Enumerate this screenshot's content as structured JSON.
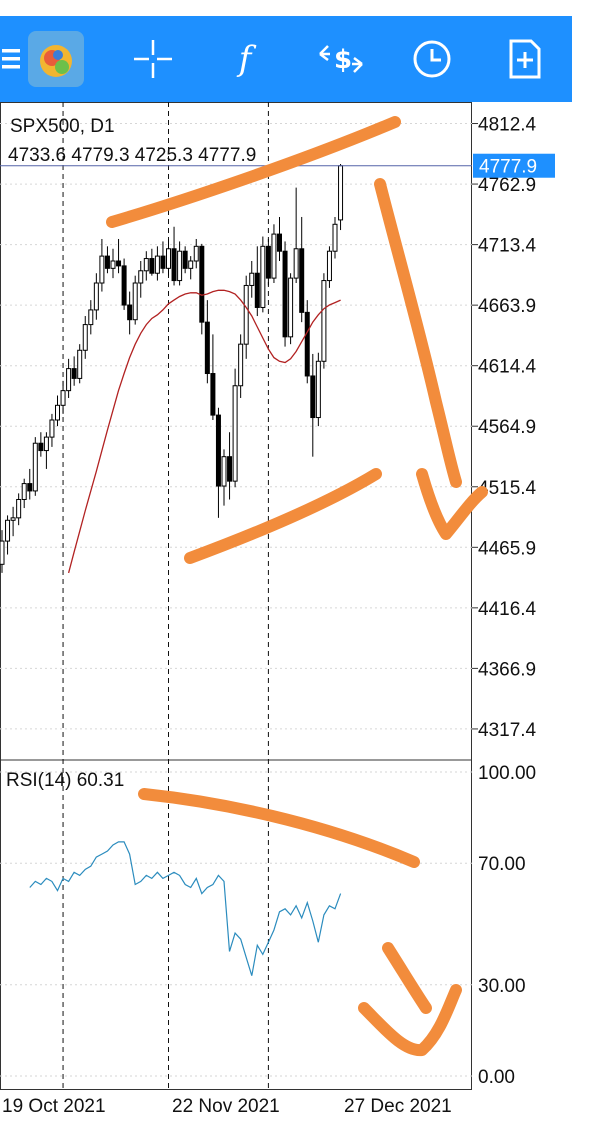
{
  "toolbar": {
    "items": [
      {
        "icon": "menu-icon"
      },
      {
        "icon": "app-logo-icon"
      },
      {
        "icon": "crosshair-icon"
      },
      {
        "icon": "indicators-icon",
        "glyph": "f"
      },
      {
        "icon": "trade-icon"
      },
      {
        "icon": "timeframe-clock-icon"
      },
      {
        "icon": "new-order-icon"
      }
    ],
    "accent": "#1e90ff"
  },
  "symbol": {
    "title": "SPX500, D1",
    "ohlc": "4733.6 4779.3 4725.3 4777.9",
    "current_price": "4777.9"
  },
  "rsi_label": "RSI(14) 60.31",
  "chart_data": [
    {
      "type": "candlestick",
      "title": "SPX500, D1",
      "y_ticks": [
        "4812.4",
        "4762.9",
        "4713.4",
        "4663.9",
        "4614.4",
        "4564.9",
        "4515.4",
        "4465.9",
        "4416.4",
        "4366.9",
        "4317.4"
      ],
      "ylim": [
        4292,
        4830
      ],
      "x_ticks": [
        "19 Oct 2021",
        "22 Nov 2021",
        "27 Dec 2021"
      ],
      "current_price": 4777.9,
      "ma_color": "#b22222",
      "bull_color": "#ffffff",
      "bear_color": "#000000",
      "candles": [
        [
          4452,
          4480,
          4445,
          4471
        ],
        [
          4471,
          4492,
          4460,
          4488
        ],
        [
          4488,
          4499,
          4475,
          4490
        ],
        [
          4490,
          4510,
          4484,
          4505
        ],
        [
          4505,
          4522,
          4498,
          4518
        ],
        [
          4518,
          4530,
          4505,
          4512
        ],
        [
          4512,
          4556,
          4508,
          4551
        ],
        [
          4551,
          4560,
          4540,
          4545
        ],
        [
          4545,
          4560,
          4530,
          4556
        ],
        [
          4556,
          4575,
          4548,
          4570
        ],
        [
          4570,
          4590,
          4565,
          4582
        ],
        [
          4582,
          4602,
          4575,
          4594
        ],
        [
          4594,
          4620,
          4588,
          4612
        ],
        [
          4612,
          4622,
          4598,
          4604
        ],
        [
          4604,
          4632,
          4600,
          4627
        ],
        [
          4627,
          4655,
          4620,
          4648
        ],
        [
          4648,
          4668,
          4640,
          4660
        ],
        [
          4660,
          4690,
          4652,
          4682
        ],
        [
          4682,
          4718,
          4675,
          4704
        ],
        [
          4704,
          4712,
          4690,
          4694
        ],
        [
          4694,
          4710,
          4686,
          4700
        ],
        [
          4700,
          4718,
          4690,
          4696
        ],
        [
          4696,
          4702,
          4660,
          4664
        ],
        [
          4664,
          4675,
          4640,
          4652
        ],
        [
          4652,
          4688,
          4648,
          4682
        ],
        [
          4682,
          4700,
          4670,
          4692
        ],
        [
          4692,
          4708,
          4684,
          4702
        ],
        [
          4702,
          4710,
          4688,
          4690
        ],
        [
          4690,
          4712,
          4684,
          4704
        ],
        [
          4704,
          4716,
          4690,
          4694
        ],
        [
          4694,
          4718,
          4688,
          4710
        ],
        [
          4710,
          4728,
          4680,
          4684
        ],
        [
          4684,
          4716,
          4680,
          4708
        ],
        [
          4708,
          4712,
          4690,
          4694
        ],
        [
          4694,
          4704,
          4685,
          4700
        ],
        [
          4700,
          4718,
          4694,
          4712
        ],
        [
          4712,
          4714,
          4640,
          4650
        ],
        [
          4650,
          4668,
          4600,
          4608
        ],
        [
          4608,
          4640,
          4570,
          4574
        ],
        [
          4574,
          4580,
          4490,
          4516
        ],
        [
          4516,
          4546,
          4500,
          4540
        ],
        [
          4540,
          4560,
          4505,
          4520
        ],
        [
          4520,
          4612,
          4515,
          4598
        ],
        [
          4598,
          4640,
          4588,
          4632
        ],
        [
          4632,
          4688,
          4620,
          4680
        ],
        [
          4680,
          4700,
          4670,
          4690
        ],
        [
          4690,
          4712,
          4655,
          4662
        ],
        [
          4662,
          4720,
          4658,
          4712
        ],
        [
          4712,
          4718,
          4680,
          4686
        ],
        [
          4686,
          4730,
          4682,
          4722
        ],
        [
          4722,
          4736,
          4700,
          4708
        ],
        [
          4708,
          4716,
          4630,
          4638
        ],
        [
          4638,
          4690,
          4632,
          4686
        ],
        [
          4686,
          4760,
          4682,
          4710
        ],
        [
          4710,
          4736,
          4650,
          4658
        ],
        [
          4658,
          4668,
          4600,
          4606
        ],
        [
          4606,
          4624,
          4540,
          4572
        ],
        [
          4572,
          4625,
          4565,
          4618
        ],
        [
          4618,
          4690,
          4612,
          4684
        ],
        [
          4684,
          4712,
          4678,
          4708
        ],
        [
          4708,
          4736,
          4702,
          4730
        ],
        [
          4733.6,
          4779.3,
          4725.3,
          4777.9
        ]
      ],
      "ma": [
        4445,
        4462,
        4479,
        4496,
        4512,
        4528,
        4545,
        4562,
        4578,
        4594,
        4608,
        4621,
        4632,
        4641,
        4648,
        4653,
        4656,
        4660,
        4665,
        4668,
        4671,
        4673,
        4674,
        4674,
        4672,
        4673,
        4675,
        4676,
        4676,
        4675,
        4673,
        4668,
        4662,
        4655,
        4646,
        4637,
        4628,
        4621,
        4618,
        4617,
        4620,
        4626,
        4634,
        4642,
        4650,
        4656,
        4661,
        4664,
        4666,
        4668
      ]
    },
    {
      "type": "line",
      "title": "RSI(14) 60.31",
      "y_ticks": [
        "100.00",
        "70.00",
        "30.00",
        "0.00"
      ],
      "ylim": [
        0,
        100
      ],
      "color": "#2b8cbe",
      "values": [
        62,
        64,
        63,
        65,
        64,
        61,
        65,
        64,
        67,
        66,
        68,
        69,
        72,
        73,
        74,
        76,
        77,
        77,
        73,
        63,
        64,
        66,
        65,
        67,
        65,
        66,
        67,
        66,
        63,
        62,
        65,
        60,
        62,
        63,
        66,
        64,
        41,
        47,
        45,
        39,
        33,
        43,
        40,
        44,
        48,
        54,
        55,
        53,
        56,
        52,
        57,
        51,
        44,
        53,
        56,
        55,
        60
      ]
    }
  ],
  "annotation_color": "#f28c3c"
}
